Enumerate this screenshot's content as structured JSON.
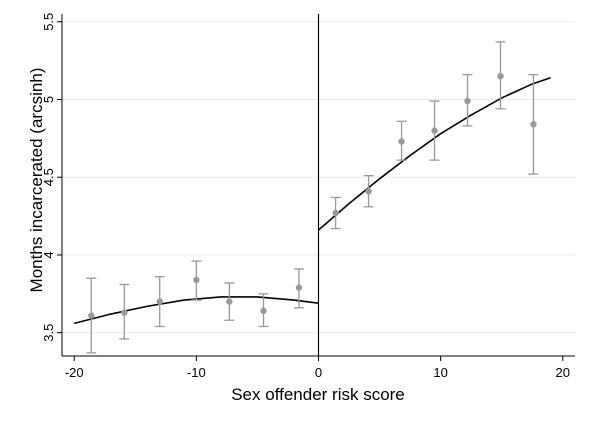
{
  "chart_data": {
    "type": "scatter",
    "title": "",
    "xlabel": "Sex offender risk score",
    "ylabel": "Months incarcerated (arcsinh)",
    "xlim": [
      -21,
      21
    ],
    "ylim": [
      3.35,
      5.55
    ],
    "xticks": [
      -20,
      -10,
      0,
      10,
      20
    ],
    "xtick_labels": [
      "-20",
      "-10",
      "0",
      "10",
      "20"
    ],
    "yticks": [
      3.5,
      4,
      4.5,
      5,
      5.5
    ],
    "ytick_labels": [
      "3.5",
      "4",
      "4.5",
      "5",
      "5.5"
    ],
    "grid": true,
    "cutoff": 0,
    "colors": {
      "points": "#999999",
      "fit": "#000000",
      "grid": "#ebebeb"
    },
    "series": [
      {
        "x": [
          -18.6,
          -15.9,
          -13.0,
          -10.0,
          -7.3,
          -4.5,
          -1.6,
          1.4,
          4.1,
          6.8,
          9.5,
          12.2,
          14.9,
          17.6
        ],
        "y": [
          3.61,
          3.63,
          3.7,
          3.84,
          3.7,
          3.64,
          3.79,
          4.27,
          4.41,
          4.73,
          4.8,
          4.99,
          5.15,
          4.84
        ],
        "ci_low": [
          3.37,
          3.46,
          3.54,
          3.71,
          3.58,
          3.54,
          3.66,
          4.17,
          4.31,
          4.61,
          4.61,
          4.83,
          4.94,
          4.52
        ],
        "ci_high": [
          3.85,
          3.81,
          3.86,
          3.96,
          3.82,
          3.75,
          3.91,
          4.37,
          4.51,
          4.86,
          4.99,
          5.16,
          5.37,
          5.16
        ]
      }
    ],
    "fit_left": {
      "x": [
        -20,
        -17,
        -14,
        -11,
        -8,
        -5,
        -2,
        0
      ],
      "y": [
        3.56,
        3.62,
        3.67,
        3.71,
        3.73,
        3.73,
        3.71,
        3.69
      ]
    },
    "fit_right": {
      "x": [
        0,
        2.5,
        5,
        7.5,
        10,
        12.5,
        15,
        17.5,
        19
      ],
      "y": [
        4.16,
        4.33,
        4.49,
        4.64,
        4.78,
        4.9,
        5.01,
        5.1,
        5.14
      ]
    }
  }
}
